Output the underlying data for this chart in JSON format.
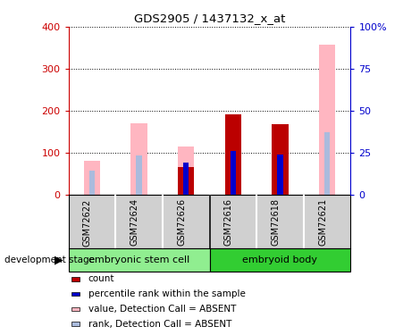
{
  "title": "GDS2905 / 1437132_x_at",
  "samples": [
    "GSM72622",
    "GSM72624",
    "GSM72626",
    "GSM72616",
    "GSM72618",
    "GSM72621"
  ],
  "value_absent": [
    80,
    170,
    115,
    null,
    null,
    358
  ],
  "rank_absent_pct": [
    14,
    23,
    null,
    null,
    null,
    37
  ],
  "count_value": [
    null,
    null,
    65,
    190,
    168,
    null
  ],
  "count_rank_pct": [
    null,
    null,
    19,
    26,
    24,
    null
  ],
  "ylim_left": [
    0,
    400
  ],
  "ylim_right": [
    0,
    100
  ],
  "yticks_left": [
    0,
    100,
    200,
    300,
    400
  ],
  "yticks_right": [
    0,
    25,
    50,
    75,
    100
  ],
  "ytick_labels_right": [
    "0",
    "25",
    "50",
    "75",
    "100%"
  ],
  "color_count": "#BB0000",
  "color_percentile": "#0000CC",
  "color_value_absent": "#FFB6C1",
  "color_rank_absent": "#AABBDD",
  "left_axis_color": "#CC0000",
  "right_axis_color": "#0000CC",
  "group1_name": "embryonic stem cell",
  "group2_name": "embryoid body",
  "group1_color": "#90EE90",
  "group2_color": "#32CD32",
  "legend_items": [
    [
      "#BB0000",
      "count"
    ],
    [
      "#0000CC",
      "percentile rank within the sample"
    ],
    [
      "#FFB6C1",
      "value, Detection Call = ABSENT"
    ],
    [
      "#AABBDD",
      "rank, Detection Call = ABSENT"
    ]
  ]
}
